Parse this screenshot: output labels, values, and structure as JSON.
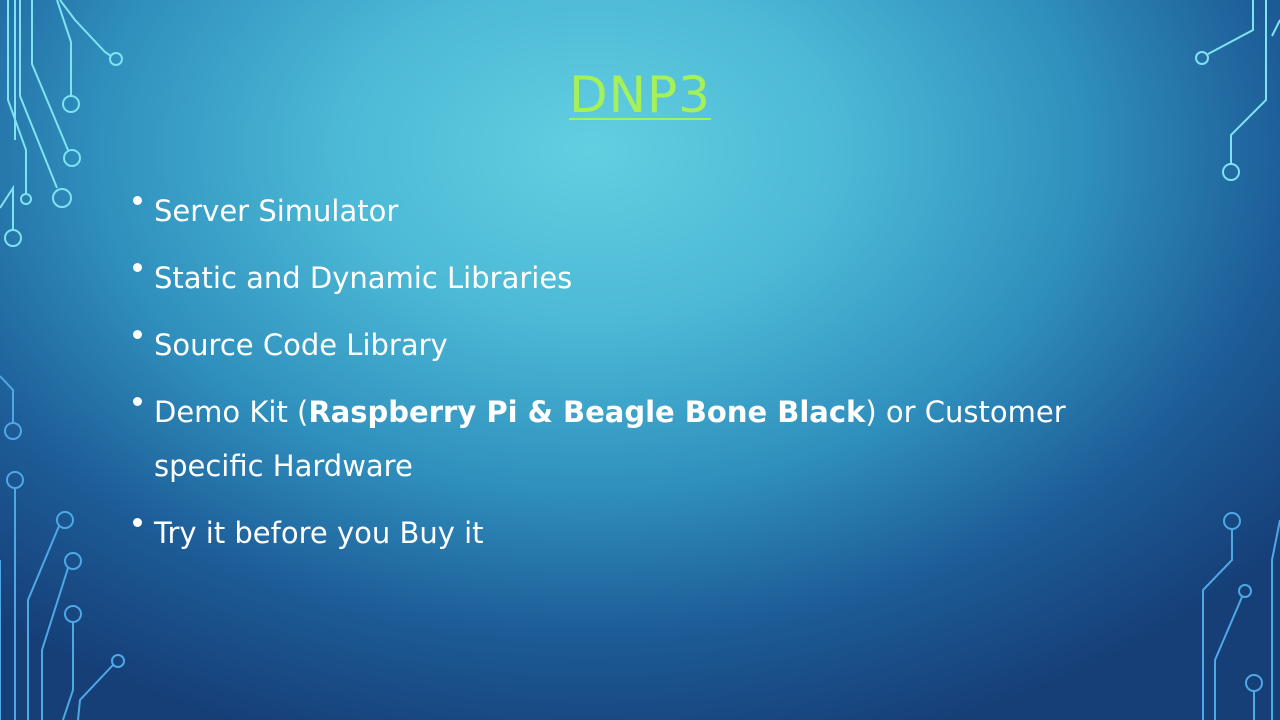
{
  "slide": {
    "title": "DNP3",
    "bullets": [
      {
        "text": "Server Simulator"
      },
      {
        "text": "Static and Dynamic Libraries"
      },
      {
        "text": "Source Code Library"
      },
      {
        "prefix": "Demo Kit (",
        "bold": "Raspberry Pi & Beagle Bone Black",
        "suffix": ") or Customer specific Hardware"
      },
      {
        "text": "Try it before you Buy it"
      }
    ]
  },
  "colors": {
    "title": "#a6f05a",
    "text": "#ffffff",
    "circuit_top": "#7fe3f2",
    "circuit_bottom": "#4a9fe0",
    "background_light": "#62cfe1",
    "background_dark": "#163f78"
  },
  "decorations": [
    "circuit-lines-left-top",
    "circuit-lines-left-bottom",
    "circuit-lines-right-top",
    "circuit-lines-right-bottom"
  ]
}
